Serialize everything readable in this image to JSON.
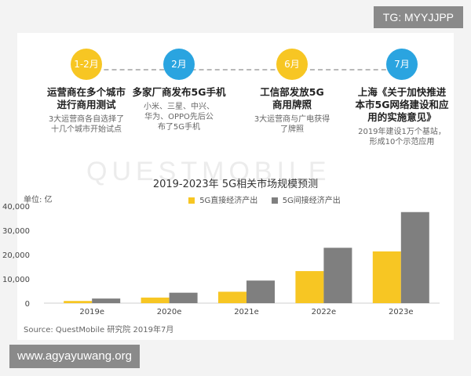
{
  "badges": {
    "tg": "TG: MYYJJPP",
    "site": "www.agyayuwang.org"
  },
  "watermark": "QUESTMOBILE",
  "timeline": [
    {
      "date": "1-2月",
      "title_lines": [
        "运营商在多个城市",
        "进行商用测试"
      ],
      "desc_lines": [
        "3大运营商各自选择了",
        "十几个城市开始试点"
      ],
      "color": "#f7c623"
    },
    {
      "date": "2月",
      "title_lines": [
        "多家厂商发布5G手机"
      ],
      "desc_lines": [
        "小米、三星、中兴、",
        "华为、OPPO先后公",
        "布了5G手机"
      ],
      "color": "#2aa4e0"
    },
    {
      "date": "6月",
      "title_lines": [
        "工信部发放5G",
        "商用牌照"
      ],
      "desc_lines": [
        "3大运营商与广电获得",
        "了牌照"
      ],
      "color": "#f7c623"
    },
    {
      "date": "7月",
      "title_lines": [
        "上海《关于加快推进",
        "本市5G网络建设和应",
        "用的实施意见》"
      ],
      "desc_lines": [
        "2019年建设1万个基站，",
        "形成10个示范应用"
      ],
      "color": "#2aa4e0"
    }
  ],
  "chart_data": {
    "type": "bar",
    "title": "2019-2023年 5G相关市场规模预测",
    "ylabel": "单位: 亿",
    "categories": [
      "2019e",
      "2020e",
      "2021e",
      "2022e",
      "2023e"
    ],
    "series": [
      {
        "name": "5G直接经济产出",
        "values": [
          900,
          2300,
          4700,
          13200,
          21300
        ],
        "color": "#f7c623"
      },
      {
        "name": "5G间接经济产出",
        "values": [
          1900,
          4300,
          9300,
          22800,
          37500
        ],
        "color": "#7f7f7f"
      }
    ],
    "yticks": [
      "0",
      "10,000",
      "20,000",
      "30,000",
      "40,000"
    ],
    "ylim": [
      0,
      40000
    ],
    "legend": "top"
  },
  "source": "Source: QuestMobile 研究院 2019年7月"
}
